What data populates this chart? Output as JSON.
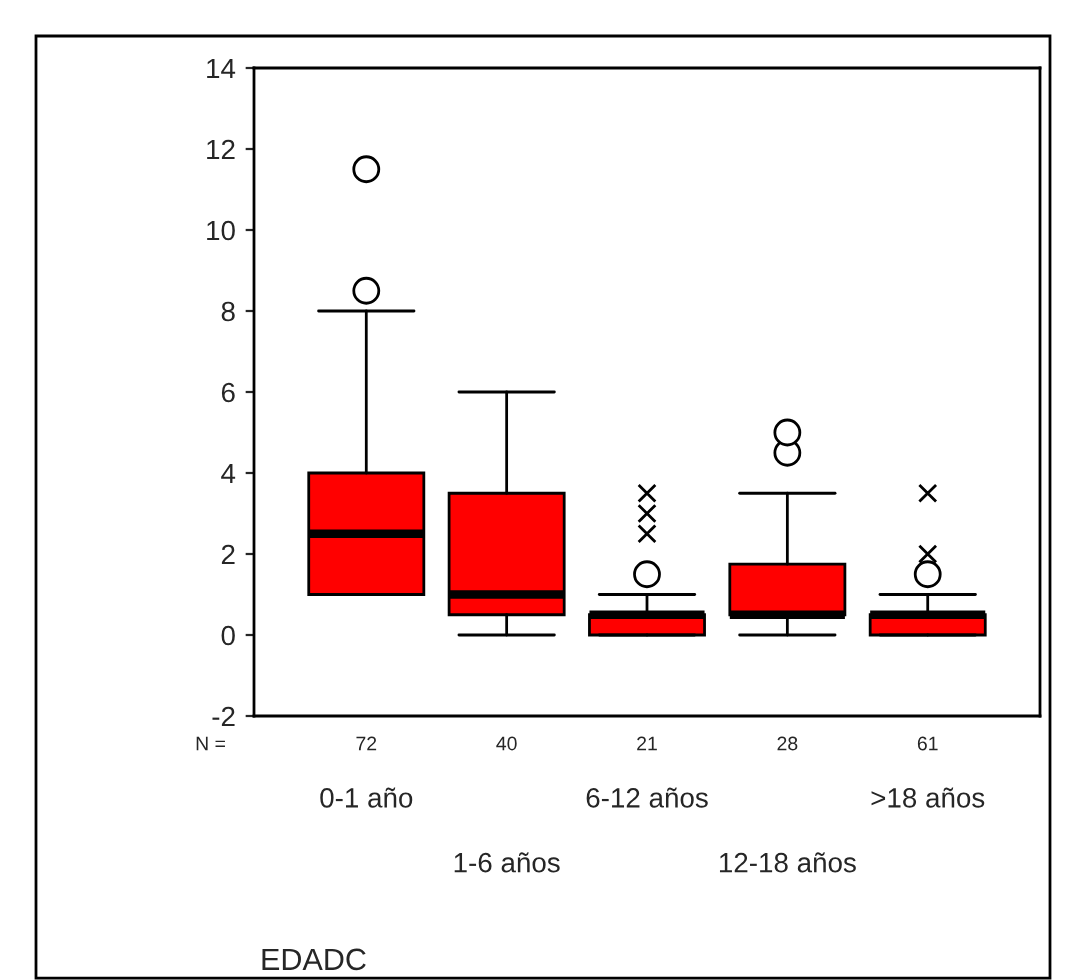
{
  "chart_data": {
    "type": "box",
    "categories": [
      "0-1 año",
      "1-6 años",
      "6-12 años",
      "12-18 años",
      ">18 años"
    ],
    "boxes": [
      {
        "low": 1,
        "q1": 1,
        "median": 2.5,
        "q3": 4,
        "high": 8,
        "outliers": [
          8.5,
          11.5
        ]
      },
      {
        "low": 0,
        "q1": 0.5,
        "median": 1,
        "q3": 3.5,
        "high": 6
      },
      {
        "low": 0,
        "q1": 0,
        "median": 0.5,
        "q3": 0.5,
        "high": 1,
        "outliers": [
          1.5
        ]
      },
      {
        "low": 0,
        "q1": 0.5,
        "median": 0.5,
        "q3": 1.75,
        "high": 3.5,
        "outliers": [
          4.5,
          5
        ]
      },
      {
        "low": 0,
        "q1": 0,
        "median": 0.5,
        "q3": 0.5,
        "high": 1,
        "outliers": [
          1.5
        ]
      }
    ],
    "color": "#ff0000",
    "series": [
      {
        "type": "scatter",
        "marker": "cross",
        "color": "#000000",
        "x": [
          "6-12 años",
          "6-12 años",
          "6-12 años",
          ">18 años",
          ">18 años"
        ],
        "values": [
          2.5,
          3,
          3.5,
          2,
          3.5
        ]
      }
    ],
    "ylim": [
      -2,
      14
    ],
    "yticks": [
      -2,
      0,
      2,
      4,
      6,
      8,
      10,
      12,
      14
    ],
    "xlabel": "EDADC",
    "annotations": [
      "N =",
      "72",
      "40",
      "21",
      "28",
      "61"
    ],
    "grid": false
  }
}
